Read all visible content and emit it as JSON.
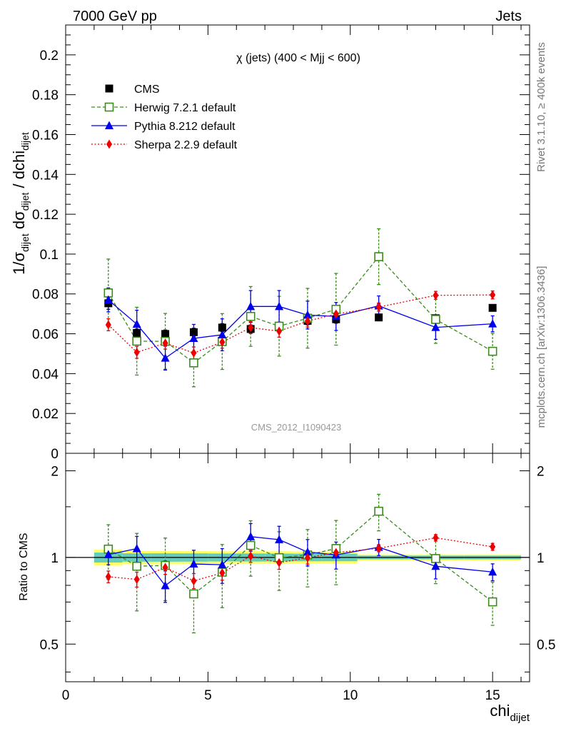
{
  "header": {
    "energy_label": "7000 GeV pp",
    "process_label": "Jets"
  },
  "side_labels": {
    "rivet": "Rivet 3.1.10, ≥ 400k events",
    "mcplots": "mcplots.cern.ch [arXiv:1306.3436]"
  },
  "chart_data": [
    {
      "type": "scatter",
      "title": "χ (jets) (400 < Mjj <  600)",
      "watermark": "CMS_2012_I1090423",
      "ylabel": "1/σ_dijet dσ_dijet / dchi_dijet",
      "xlim": [
        0,
        16.3
      ],
      "ylim": [
        0,
        0.215
      ],
      "y_ticks": [
        "0",
        "0.02",
        "0.04",
        "0.06",
        "0.08",
        "0.1",
        "0.12",
        "0.14",
        "0.16",
        "0.18",
        "0.2"
      ],
      "grid": false,
      "legend_position": "top-left",
      "legend": [
        "CMS",
        "Herwig 7.2.1 default",
        "Pythia 8.212 default",
        "Sherpa 2.2.9 default"
      ],
      "series": [
        {
          "name": "CMS",
          "color": "#000000",
          "marker": "square-filled",
          "x": [
            1.5,
            2.5,
            3.5,
            4.5,
            5.5,
            6.5,
            7.5,
            8.5,
            9.5,
            11,
            13,
            15
          ],
          "y": [
            0.0753,
            0.0604,
            0.0599,
            0.0608,
            0.0631,
            0.0624,
            0.0639,
            0.0665,
            0.0673,
            0.0682,
            0.0678,
            0.073
          ],
          "err": [
            0.003,
            0.002,
            0.002,
            0.002,
            0.002,
            0.002,
            0.002,
            0.002,
            0.002,
            0.001,
            0.001,
            0.001
          ]
        },
        {
          "name": "Herwig 7.2.1 default",
          "color": "#3a8c1c",
          "marker": "square-open",
          "line": "dashed",
          "x": [
            1.5,
            2.5,
            3.5,
            4.5,
            5.5,
            6.5,
            7.5,
            8.5,
            9.5,
            11,
            13,
            15
          ],
          "y": [
            0.0805,
            0.0563,
            0.0562,
            0.0454,
            0.0561,
            0.0687,
            0.0638,
            0.0678,
            0.0723,
            0.0987,
            0.0672,
            0.0512
          ],
          "err": [
            0.017,
            0.017,
            0.014,
            0.012,
            0.014,
            0.015,
            0.015,
            0.015,
            0.018,
            0.014,
            0.012,
            0.009
          ]
        },
        {
          "name": "Pythia 8.212 default",
          "color": "#0000ee",
          "marker": "triangle-filled",
          "line": "solid",
          "x": [
            1.5,
            2.5,
            3.5,
            4.5,
            5.5,
            6.5,
            7.5,
            8.5,
            9.5,
            11,
            13,
            15
          ],
          "y": [
            0.077,
            0.0648,
            0.0478,
            0.0577,
            0.0595,
            0.0737,
            0.0737,
            0.0694,
            0.0687,
            0.074,
            0.0632,
            0.065
          ],
          "err": [
            0.006,
            0.007,
            0.006,
            0.007,
            0.008,
            0.008,
            0.008,
            0.007,
            0.007,
            0.005,
            0.006,
            0.004
          ]
        },
        {
          "name": "Sherpa 2.2.9 default",
          "color": "#ee0000",
          "marker": "diamond-filled",
          "line": "dotted",
          "x": [
            1.5,
            2.5,
            3.5,
            4.5,
            5.5,
            6.5,
            7.5,
            8.5,
            9.5,
            11,
            13,
            15
          ],
          "y": [
            0.0645,
            0.0507,
            0.0553,
            0.0504,
            0.0558,
            0.0631,
            0.0613,
            0.0664,
            0.0699,
            0.0734,
            0.0793,
            0.0795
          ],
          "err": [
            0.003,
            0.003,
            0.003,
            0.003,
            0.003,
            0.003,
            0.003,
            0.003,
            0.003,
            0.002,
            0.002,
            0.002
          ]
        }
      ]
    },
    {
      "type": "scatter",
      "ylabel": "Ratio to CMS",
      "xlabel": "chi_dijet",
      "xlim": [
        0,
        16.3
      ],
      "ylim": [
        0.37,
        2.3
      ],
      "y_scale": "log",
      "x_ticks": [
        "0",
        "5",
        "10",
        "15"
      ],
      "y_ticks": [
        "0.5",
        "1",
        "2"
      ],
      "grid": false,
      "reference_line": 1,
      "band_colors": {
        "inner": "#66ccbb",
        "outer": "#ffff66"
      },
      "series": [
        {
          "name": "Herwig 7.2.1 default",
          "color": "#3a8c1c",
          "marker": "square-open",
          "line": "dashed",
          "x": [
            1.5,
            2.5,
            3.5,
            4.5,
            5.5,
            6.5,
            7.5,
            8.5,
            9.5,
            11,
            13,
            15
          ],
          "y": [
            1.069,
            0.932,
            0.938,
            0.747,
            0.889,
            1.101,
            0.998,
            1.02,
            1.074,
            1.447,
            0.991,
            0.701
          ],
          "err": [
            0.23,
            0.28,
            0.23,
            0.2,
            0.22,
            0.24,
            0.23,
            0.23,
            0.27,
            0.21,
            0.18,
            0.12
          ]
        },
        {
          "name": "Pythia 8.212 default",
          "color": "#0000ee",
          "marker": "triangle-filled",
          "line": "solid",
          "x": [
            1.5,
            2.5,
            3.5,
            4.5,
            5.5,
            6.5,
            7.5,
            8.5,
            9.5,
            11,
            13,
            15
          ],
          "y": [
            1.023,
            1.073,
            0.798,
            0.949,
            0.943,
            1.181,
            1.153,
            1.044,
            1.021,
            1.085,
            0.932,
            0.89
          ],
          "err": [
            0.08,
            0.11,
            0.1,
            0.11,
            0.13,
            0.13,
            0.13,
            0.11,
            0.11,
            0.07,
            0.09,
            0.06
          ]
        },
        {
          "name": "Sherpa 2.2.9 default",
          "color": "#ee0000",
          "marker": "diamond-filled",
          "line": "dotted",
          "x": [
            1.5,
            2.5,
            3.5,
            4.5,
            5.5,
            6.5,
            7.5,
            8.5,
            9.5,
            11,
            13,
            15
          ],
          "y": [
            0.857,
            0.839,
            0.923,
            0.829,
            0.884,
            1.011,
            0.959,
            0.998,
            1.039,
            1.076,
            1.17,
            1.089
          ],
          "err": [
            0.04,
            0.05,
            0.05,
            0.05,
            0.05,
            0.05,
            0.05,
            0.05,
            0.04,
            0.03,
            0.03,
            0.03
          ]
        }
      ]
    }
  ]
}
